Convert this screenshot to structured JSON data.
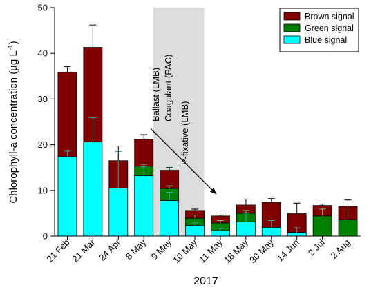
{
  "chart_data": {
    "type": "bar",
    "stacked": true,
    "categories": [
      "21 Feb",
      "21 Mar",
      "24 Apr",
      "8 May",
      "9 May",
      "10 May",
      "11 May",
      "18 May",
      "30 May",
      "14 Jun",
      "2 Jul",
      "2 Aug"
    ],
    "series": [
      {
        "name": "Blue signal",
        "color": "#00ffff",
        "values": [
          17.4,
          20.6,
          10.5,
          13.2,
          7.8,
          2.3,
          1.2,
          3.1,
          1.9,
          0.8,
          0.0,
          0.0
        ],
        "errors": [
          1.2,
          5.3,
          8.0,
          2.0,
          1.8,
          0.6,
          0.5,
          2.0,
          1.5,
          1.0,
          0,
          0
        ]
      },
      {
        "name": "Green signal",
        "color": "#008000",
        "values": [
          0.0,
          0.0,
          0.0,
          2.1,
          2.6,
          1.6,
          1.7,
          1.9,
          0.0,
          0.0,
          4.4,
          3.6
        ],
        "errors": [
          0,
          0,
          0,
          0.4,
          0.6,
          0.7,
          0.5,
          0.6,
          0,
          0,
          1.5,
          4.3
        ]
      },
      {
        "name": "Brown signal",
        "color": "#800000",
        "values": [
          18.5,
          20.7,
          6.0,
          5.9,
          4.0,
          1.7,
          1.5,
          1.8,
          5.5,
          4.1,
          2.3,
          2.9
        ],
        "errors": [
          1.2,
          4.9,
          3.2,
          1.0,
          0.6,
          0.3,
          0.2,
          1.3,
          0.8,
          2.3,
          0.3,
          1.4
        ]
      }
    ],
    "xlabel": "2017",
    "ylabel": "Chlorophyll-a concentration (µg L",
    "ylabel_sup": "-1",
    "ylabel_end": ")",
    "ylim": [
      0,
      50
    ],
    "yticks": [
      0,
      10,
      20,
      30,
      40,
      50
    ],
    "legend": {
      "placement": "top-right",
      "order": [
        "Brown signal",
        "Green signal",
        "Blue signal"
      ]
    },
    "annotations": {
      "shaded_categories": [
        "8 May",
        "10 May"
      ],
      "shade_color": "#dcdcdc",
      "labels": [
        "Ballast (LMB)",
        "Coagulant (PAC)",
        "P-fixative (LMB)"
      ],
      "arrow": {
        "from_category": "8 May",
        "from_value": 23.5,
        "to_category": "11 May",
        "to_value": 9.2
      }
    },
    "grid": false
  }
}
